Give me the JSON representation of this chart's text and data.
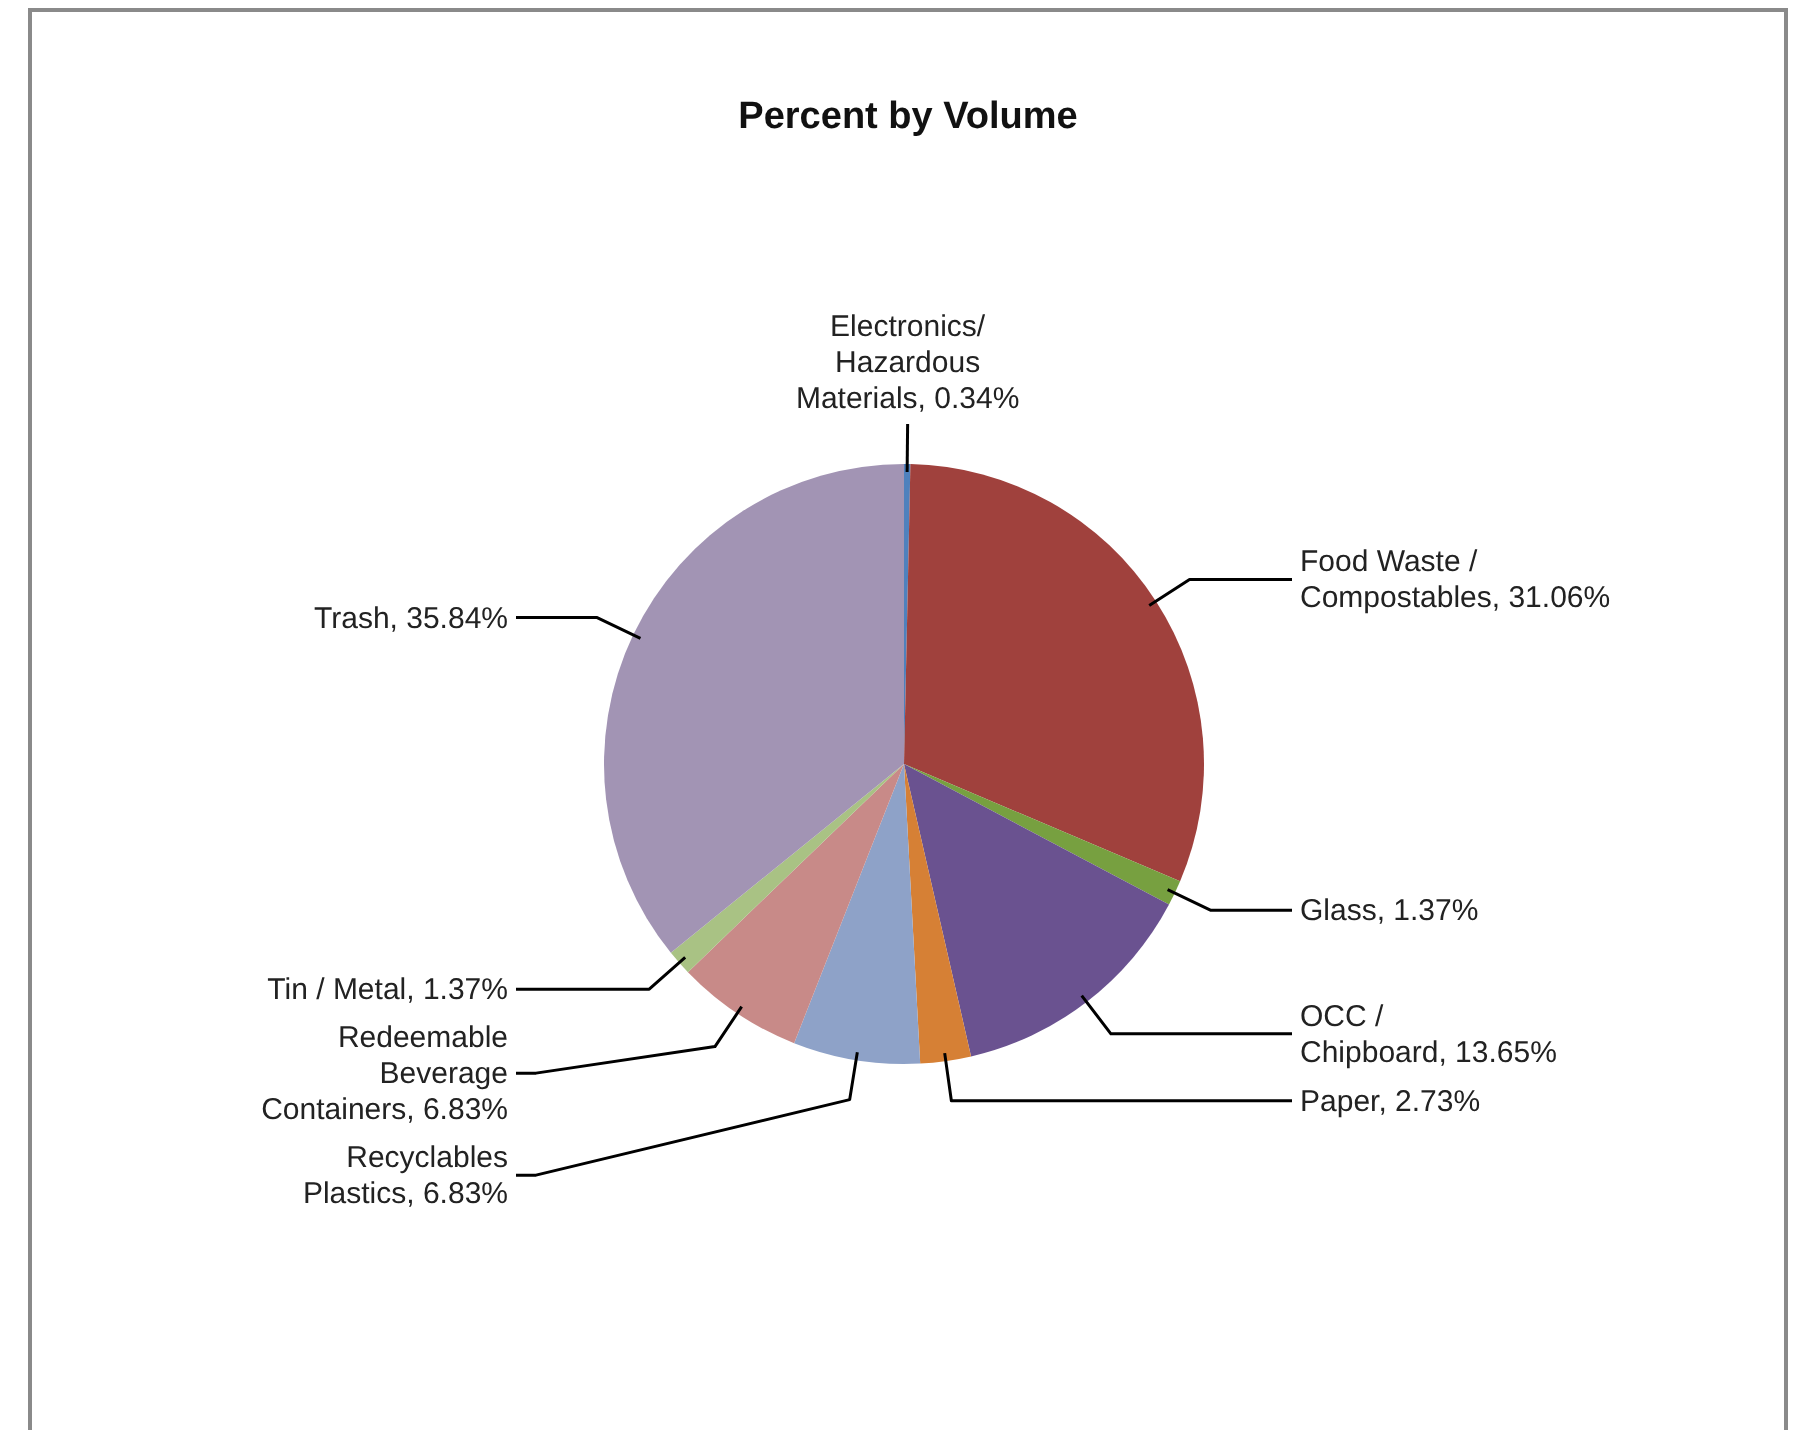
{
  "chart_data": {
    "type": "pie",
    "title": "Percent by Volume",
    "categories": [
      "Electronics/ Hazardous Materials",
      "Food Waste / Compostables",
      "Glass",
      "OCC / Chipboard",
      "Paper",
      "Recyclables Plastics",
      "Redeemable Beverage Containers",
      "Tin / Metal",
      "Trash"
    ],
    "values": [
      0.34,
      31.06,
      1.37,
      13.65,
      2.73,
      6.83,
      6.83,
      1.37,
      35.84
    ],
    "value_labels": [
      "0.34%",
      "31.06%",
      "1.37%",
      "13.65%",
      "2.73%",
      "6.83%",
      "6.83%",
      "1.37%",
      "35.84%"
    ],
    "colors": [
      "#4f81bd",
      "#a0413d",
      "#77a040",
      "#6a5290",
      "#d68035",
      "#8ea2c8",
      "#c88a88",
      "#a9c284",
      "#a294b4"
    ]
  }
}
